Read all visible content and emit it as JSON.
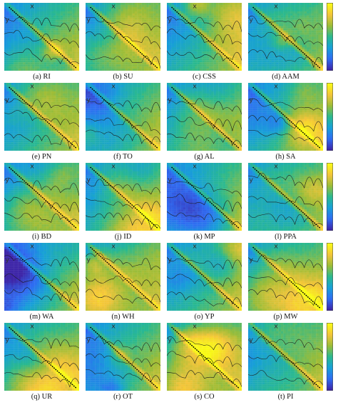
{
  "figure": {
    "panels": [
      {
        "caption": "(a) RI"
      },
      {
        "caption": "(b) SU"
      },
      {
        "caption": "(c) CSS"
      },
      {
        "caption": "(d) AAM"
      },
      {
        "caption": "(e) PN"
      },
      {
        "caption": "(f) TO"
      },
      {
        "caption": "(g) AL"
      },
      {
        "caption": "(h) SA"
      },
      {
        "caption": "(i) BD"
      },
      {
        "caption": "(j) ID"
      },
      {
        "caption": "(k) MP"
      },
      {
        "caption": "(l) PPA"
      },
      {
        "caption": "(m) WA"
      },
      {
        "caption": "(n) WH"
      },
      {
        "caption": "(o) YP"
      },
      {
        "caption": "(p) MW"
      },
      {
        "caption": "(q) UR"
      },
      {
        "caption": "(r) OT"
      },
      {
        "caption": "(s) CO"
      },
      {
        "caption": "(t) PI"
      }
    ],
    "axis_letters": {
      "x": "x",
      "y": "y"
    },
    "colormap": [
      "#3e26a8",
      "#2f6cf2",
      "#18a0d8",
      "#2ab98f",
      "#9cbd38",
      "#f4c53a",
      "#f9fb15"
    ],
    "diagonal_color": "#000000"
  }
}
